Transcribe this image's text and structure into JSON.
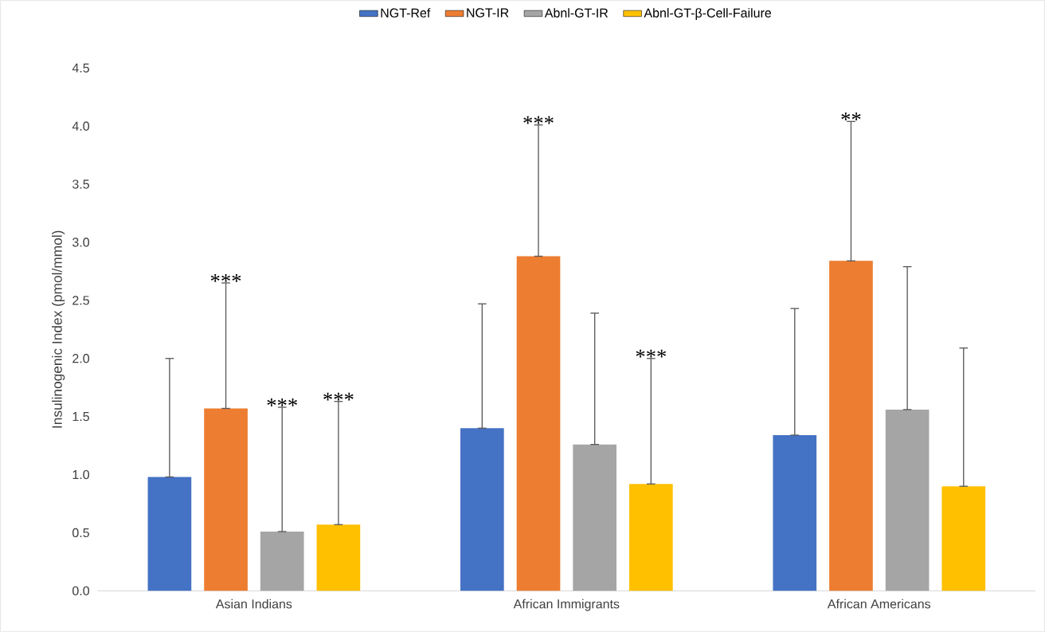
{
  "chart_data": {
    "type": "bar",
    "ylabel": "Insulinogenic Index (pmol/mmol)",
    "categories": [
      "Asian Indians",
      "African Immigrants",
      "African Americans"
    ],
    "series": [
      {
        "name": "NGT-Ref",
        "color": "#4472c4",
        "values": [
          0.98,
          1.4,
          1.34
        ],
        "errors": [
          [
            0.98,
            2.0
          ],
          [
            1.4,
            2.47
          ],
          [
            1.34,
            2.43
          ]
        ]
      },
      {
        "name": "NGT-IR",
        "color": "#ed7d31",
        "values": [
          1.57,
          2.88,
          2.84
        ],
        "errors": [
          [
            1.57,
            2.65
          ],
          [
            2.88,
            4.01
          ],
          [
            2.84,
            4.04
          ]
        ]
      },
      {
        "name": "Abnl-GT-IR",
        "color": "#a5a5a5",
        "values": [
          0.51,
          1.26,
          1.56
        ],
        "errors": [
          [
            0.51,
            1.58
          ],
          [
            1.26,
            2.39
          ],
          [
            1.56,
            2.79
          ]
        ]
      },
      {
        "name": "Abnl-GT-β-Cell-Failure",
        "color": "#ffc000",
        "values": [
          0.57,
          0.92,
          0.9
        ],
        "errors": [
          [
            0.57,
            1.63
          ],
          [
            0.92,
            2.0
          ],
          [
            0.9,
            2.09
          ]
        ]
      }
    ],
    "ylim": [
      0,
      4.5
    ],
    "yticks": [
      {
        "value": 0,
        "label": "0.0"
      },
      {
        "value": 0.5,
        "label": "0.5"
      },
      {
        "value": 1,
        "label": "1.0"
      },
      {
        "value": 1.5,
        "label": "1.5"
      },
      {
        "value": 2,
        "label": "2.0"
      },
      {
        "value": 2.5,
        "label": "2.5"
      },
      {
        "value": 3,
        "label": "3.0"
      },
      {
        "value": 3.5,
        "label": "3.5"
      },
      {
        "value": 4,
        "label": "4.0"
      },
      {
        "value": 4.5,
        "label": "4.5"
      }
    ],
    "legend": "top",
    "grid": false,
    "annotations": [
      "***",
      "***",
      "***",
      "***",
      "***",
      "**"
    ]
  }
}
